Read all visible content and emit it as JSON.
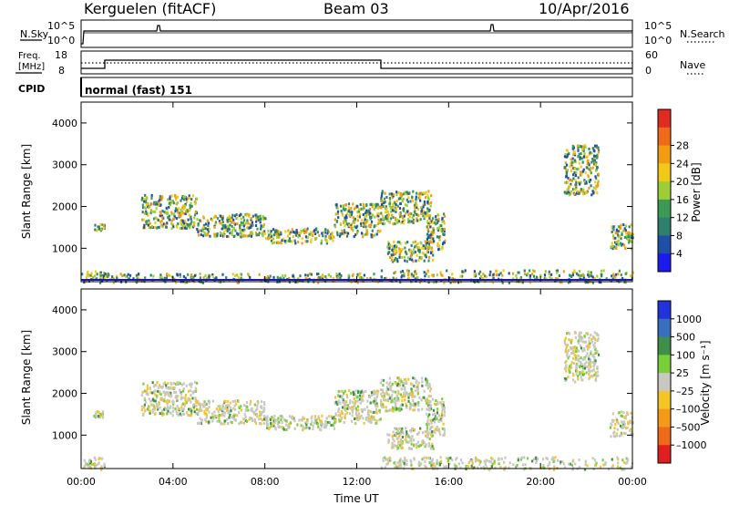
{
  "header": {
    "station": "Kerguelen (fitACF)",
    "beam": "Beam 03",
    "date": "10/Apr/2016"
  },
  "strip_panels": {
    "noise": {
      "left_label": "N.Sky",
      "right_label": "N.Search",
      "left_ticks": [
        "10^5",
        "10^0"
      ],
      "right_ticks": [
        "10^5",
        "10^0"
      ]
    },
    "frequency": {
      "left_label_1": "Freq.",
      "left_label_2": "[MHz]",
      "right_label": "Nave",
      "left_ticks": [
        "18",
        "8"
      ],
      "right_ticks": [
        "60",
        "0"
      ]
    },
    "cpid": {
      "label": "CPID",
      "value": "normal (fast) 151"
    }
  },
  "chart_data": [
    {
      "type": "heatmap",
      "name": "power",
      "ylabel": "Slant Range [km]",
      "ylim": [
        200,
        4500
      ],
      "yticks": [
        "1000",
        "2000",
        "3000",
        "4000"
      ],
      "xlim_hours": [
        0,
        24
      ],
      "colorbar": {
        "label": "Power [dB]",
        "tick_labels": [
          "4",
          "8",
          "12",
          "16",
          "20",
          "24",
          "28"
        ],
        "colors": [
          "#1b1bf0",
          "#1f4fa8",
          "#2f7f6f",
          "#3c9a55",
          "#9ccf35",
          "#f2c919",
          "#f39c12",
          "#f06a1a",
          "#e02b20"
        ]
      },
      "echo_regions": [
        {
          "t": [
            0.0,
            1.0
          ],
          "r": [
            200,
            500
          ]
        },
        {
          "t": [
            1.0,
            13.0
          ],
          "r": [
            200,
            420
          ]
        },
        {
          "t": [
            13.0,
            24.0
          ],
          "r": [
            200,
            500
          ]
        },
        {
          "t": [
            0.5,
            1.0
          ],
          "r": [
            1450,
            1600
          ]
        },
        {
          "t": [
            2.6,
            5.0
          ],
          "r": [
            1500,
            2300
          ]
        },
        {
          "t": [
            5.0,
            8.0
          ],
          "r": [
            1300,
            1850
          ]
        },
        {
          "t": [
            8.0,
            11.0
          ],
          "r": [
            1150,
            1500
          ]
        },
        {
          "t": [
            11.0,
            13.0
          ],
          "r": [
            1300,
            2100
          ]
        },
        {
          "t": [
            13.0,
            15.2
          ],
          "r": [
            1600,
            2400
          ]
        },
        {
          "t": [
            13.3,
            15.3
          ],
          "r": [
            700,
            1200
          ]
        },
        {
          "t": [
            15.0,
            15.8
          ],
          "r": [
            1000,
            1900
          ]
        },
        {
          "t": [
            21.0,
            22.5
          ],
          "r": [
            2300,
            3500
          ]
        },
        {
          "t": [
            23.0,
            24.0
          ],
          "r": [
            1000,
            1600
          ]
        }
      ]
    },
    {
      "type": "heatmap",
      "name": "velocity",
      "ylabel": "Slant Range [km]",
      "ylim": [
        200,
        4500
      ],
      "yticks": [
        "1000",
        "2000",
        "3000",
        "4000"
      ],
      "xlim_hours": [
        0,
        24
      ],
      "xticks": [
        "00:00",
        "04:00",
        "08:00",
        "12:00",
        "16:00",
        "20:00",
        "00:00"
      ],
      "xlabel": "Time UT",
      "colorbar": {
        "label": "Velocity [m s⁻¹]",
        "tick_labels": [
          "1000",
          "500",
          "100",
          "25",
          "–25",
          "–100",
          "–500",
          "–1000"
        ],
        "colors": [
          "#2233dd",
          "#3a6fc0",
          "#3e8f4a",
          "#78cf3a",
          "#c8c8c0",
          "#f5c425",
          "#f39a1a",
          "#f06a1a",
          "#e02020"
        ]
      },
      "echo_regions": [
        {
          "t": [
            0.0,
            1.0
          ],
          "r": [
            200,
            500
          ]
        },
        {
          "t": [
            13.0,
            24.0
          ],
          "r": [
            200,
            500
          ]
        },
        {
          "t": [
            0.5,
            1.0
          ],
          "r": [
            1450,
            1600
          ]
        },
        {
          "t": [
            2.6,
            5.0
          ],
          "r": [
            1500,
            2300
          ]
        },
        {
          "t": [
            5.0,
            8.0
          ],
          "r": [
            1300,
            1850
          ]
        },
        {
          "t": [
            8.0,
            11.0
          ],
          "r": [
            1150,
            1500
          ]
        },
        {
          "t": [
            11.0,
            13.0
          ],
          "r": [
            1300,
            2100
          ]
        },
        {
          "t": [
            13.0,
            15.2
          ],
          "r": [
            1600,
            2400
          ]
        },
        {
          "t": [
            13.3,
            15.3
          ],
          "r": [
            700,
            1200
          ]
        },
        {
          "t": [
            15.0,
            15.8
          ],
          "r": [
            1000,
            1900
          ]
        },
        {
          "t": [
            21.0,
            22.5
          ],
          "r": [
            2300,
            3500
          ]
        },
        {
          "t": [
            23.0,
            24.0
          ],
          "r": [
            1000,
            1600
          ]
        }
      ]
    }
  ]
}
